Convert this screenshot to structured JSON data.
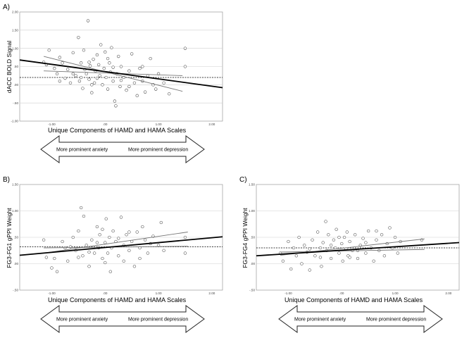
{
  "chart_data": [
    {
      "panel": "A)",
      "type": "scatter",
      "ylabel": "dACC BOLD Signal",
      "xlabel": "Unique Components of HAMD and HAMA Scales",
      "xlim": [
        -1.6,
        2.2
      ],
      "ylim": [
        -1.0,
        2.0
      ],
      "x_ticks": [
        -1.0,
        0.0,
        1.0,
        2.0
      ],
      "x_tick_labels": [
        "-1.00",
        ".00",
        "1.00",
        "2.00"
      ],
      "y_ticks": [
        -1.0,
        -0.5,
        0.0,
        0.5,
        1.0,
        1.5,
        2.0
      ],
      "y_tick_labels": [
        "-1.00",
        "-.50",
        ".00",
        ".50",
        "1.00",
        "1.50",
        "2.00"
      ],
      "arrow_left": "More prominent anxiety",
      "arrow_right": "More prominent depression",
      "fit_line": [
        [
          -1.6,
          0.68
        ],
        [
          2.2,
          -0.08
        ]
      ],
      "group_lines": [
        [
          [
            -1.15,
            0.78
          ],
          [
            1.45,
            -0.18
          ]
        ],
        [
          [
            -1.15,
            0.38
          ],
          [
            1.45,
            0.25
          ]
        ]
      ],
      "reference_y": 0.2,
      "points": [
        [
          -1.15,
          0.62
        ],
        [
          -1.1,
          0.55
        ],
        [
          -1.05,
          0.95
        ],
        [
          -0.95,
          0.45
        ],
        [
          -0.9,
          0.3
        ],
        [
          -0.85,
          0.1
        ],
        [
          -0.8,
          0.6
        ],
        [
          -0.75,
          0.18
        ],
        [
          -0.7,
          0.42
        ],
        [
          -0.65,
          0.05
        ],
        [
          -0.6,
          0.88
        ],
        [
          -0.55,
          0.25
        ],
        [
          -0.5,
          1.3
        ],
        [
          -0.48,
          0.1
        ],
        [
          -0.45,
          0.6
        ],
        [
          -0.42,
          -0.1
        ],
        [
          -0.4,
          0.95
        ],
        [
          -0.38,
          0.42
        ],
        [
          -0.35,
          0.3
        ],
        [
          -0.32,
          1.76
        ],
        [
          -0.3,
          0.15
        ],
        [
          -0.28,
          0.52
        ],
        [
          -0.25,
          -0.22
        ],
        [
          -0.22,
          0.7
        ],
        [
          -0.2,
          0.05
        ],
        [
          -0.18,
          0.38
        ],
        [
          -0.15,
          0.82
        ],
        [
          -0.12,
          0.55
        ],
        [
          -0.1,
          0.25
        ],
        [
          -0.08,
          1.1
        ],
        [
          -0.05,
          0.0
        ],
        [
          -0.02,
          0.45
        ],
        [
          0.0,
          0.9
        ],
        [
          0.02,
          0.2
        ],
        [
          0.05,
          -0.12
        ],
        [
          0.08,
          0.6
        ],
        [
          0.1,
          0.35
        ],
        [
          0.12,
          1.02
        ],
        [
          0.15,
          0.1
        ],
        [
          0.18,
          -0.45
        ],
        [
          0.2,
          -0.58
        ],
        [
          0.22,
          0.3
        ],
        [
          0.25,
          0.78
        ],
        [
          0.28,
          -0.05
        ],
        [
          0.3,
          0.5
        ],
        [
          0.35,
          0.2
        ],
        [
          0.4,
          -0.15
        ],
        [
          0.45,
          0.38
        ],
        [
          0.5,
          0.85
        ],
        [
          0.55,
          0.05
        ],
        [
          0.6,
          -0.3
        ],
        [
          0.65,
          0.45
        ],
        [
          0.7,
          0.1
        ],
        [
          0.75,
          -0.2
        ],
        [
          0.8,
          0.25
        ],
        [
          0.85,
          0.72
        ],
        [
          0.9,
          0.0
        ],
        [
          0.95,
          -0.12
        ],
        [
          1.0,
          0.3
        ],
        [
          1.1,
          0.05
        ],
        [
          1.2,
          -0.25
        ],
        [
          1.5,
          0.5
        ],
        [
          1.5,
          1.0
        ],
        [
          -0.6,
          0.3
        ],
        [
          -0.3,
          0.62
        ],
        [
          -0.25,
          0.0
        ],
        [
          0.05,
          0.72
        ],
        [
          0.3,
          0.12
        ],
        [
          -0.45,
          0.2
        ],
        [
          0.7,
          0.5
        ],
        [
          -0.15,
          0.18
        ],
        [
          0.45,
          -0.05
        ],
        [
          -0.85,
          0.75
        ],
        [
          0.15,
          0.48
        ]
      ]
    },
    {
      "panel": "B)",
      "type": "scatter",
      "ylabel": "FG3-FG1 gPPI Weight",
      "xlabel": "Unique Components of HAMD and HAMA Scales",
      "xlim": [
        -1.6,
        2.2
      ],
      "ylim": [
        -0.5,
        1.5
      ],
      "x_ticks": [
        -1.0,
        0.0,
        1.0,
        2.0
      ],
      "x_tick_labels": [
        "-1.00",
        ".00",
        "1.00",
        "2.00"
      ],
      "y_ticks": [
        -0.5,
        0.0,
        0.5,
        1.0,
        1.5
      ],
      "y_tick_labels": [
        "-.50",
        ".00",
        ".50",
        "1.00",
        "1.50"
      ],
      "arrow_left": "More prominent anxiety",
      "arrow_right": "More prominent depression",
      "fit_line": [
        [
          -1.6,
          0.16
        ],
        [
          2.2,
          0.51
        ]
      ],
      "group_lines": [
        [
          [
            -1.15,
            0.2
          ],
          [
            1.55,
            0.6
          ]
        ],
        [
          [
            -1.15,
            0.3
          ],
          [
            1.55,
            0.33
          ]
        ]
      ],
      "reference_y": 0.32,
      "points": [
        [
          -1.15,
          0.45
        ],
        [
          -1.1,
          0.12
        ],
        [
          -1.0,
          -0.08
        ],
        [
          -0.95,
          0.1
        ],
        [
          -0.9,
          -0.15
        ],
        [
          -0.8,
          0.42
        ],
        [
          -0.75,
          0.3
        ],
        [
          -0.7,
          0.05
        ],
        [
          -0.6,
          0.5
        ],
        [
          -0.55,
          0.25
        ],
        [
          -0.5,
          0.62
        ],
        [
          -0.45,
          1.06
        ],
        [
          -0.42,
          0.15
        ],
        [
          -0.4,
          0.9
        ],
        [
          -0.35,
          0.35
        ],
        [
          -0.3,
          -0.05
        ],
        [
          -0.25,
          0.45
        ],
        [
          -0.2,
          0.2
        ],
        [
          -0.15,
          0.7
        ],
        [
          -0.12,
          0.3
        ],
        [
          -0.1,
          0.55
        ],
        [
          -0.05,
          0.1
        ],
        [
          0.0,
          0.4
        ],
        [
          0.02,
          0.85
        ],
        [
          0.05,
          0.2
        ],
        [
          0.08,
          0.5
        ],
        [
          0.1,
          -0.15
        ],
        [
          0.12,
          0.3
        ],
        [
          0.15,
          0.62
        ],
        [
          0.2,
          0.42
        ],
        [
          0.25,
          0.15
        ],
        [
          0.3,
          0.88
        ],
        [
          0.35,
          0.35
        ],
        [
          0.4,
          0.55
        ],
        [
          0.45,
          0.25
        ],
        [
          0.5,
          0.42
        ],
        [
          0.55,
          -0.05
        ],
        [
          0.6,
          0.6
        ],
        [
          0.65,
          0.3
        ],
        [
          0.7,
          0.7
        ],
        [
          0.75,
          0.45
        ],
        [
          0.8,
          0.2
        ],
        [
          0.85,
          0.38
        ],
        [
          0.9,
          0.52
        ],
        [
          1.0,
          0.35
        ],
        [
          1.05,
          0.78
        ],
        [
          1.1,
          0.25
        ],
        [
          1.5,
          0.2
        ],
        [
          1.5,
          0.5
        ],
        [
          -0.65,
          0.32
        ],
        [
          -0.3,
          0.22
        ],
        [
          0.0,
          0.02
        ],
        [
          0.25,
          0.48
        ],
        [
          -0.15,
          0.4
        ],
        [
          0.45,
          0.6
        ],
        [
          -0.5,
          0.12
        ],
        [
          0.65,
          0.1
        ],
        [
          -0.05,
          0.65
        ],
        [
          0.35,
          0.05
        ]
      ]
    },
    {
      "panel": "C)",
      "type": "scatter",
      "ylabel": "FG3-FG4 gPPI Weight",
      "xlabel": "Unique Components of HAMD and HAMA Scales",
      "xlim": [
        -1.6,
        2.2
      ],
      "ylim": [
        -0.5,
        1.5
      ],
      "x_ticks": [
        -1.0,
        0.0,
        1.0,
        2.0
      ],
      "x_tick_labels": [
        "-1.00",
        ".00",
        "1.00",
        "2.00"
      ],
      "y_ticks": [
        -0.5,
        0.0,
        0.5,
        1.0,
        1.5
      ],
      "y_tick_labels": [
        "-.50",
        ".00",
        ".50",
        "1.00",
        "1.50"
      ],
      "arrow_left": "More prominent anxiety",
      "arrow_right": "More prominent depression",
      "fit_line": [
        [
          -1.6,
          0.15
        ],
        [
          2.2,
          0.4
        ]
      ],
      "group_lines": [
        [
          [
            -1.15,
            0.16
          ],
          [
            1.55,
            0.47
          ]
        ],
        [
          [
            -1.15,
            0.22
          ],
          [
            1.55,
            0.27
          ]
        ]
      ],
      "reference_y": 0.3,
      "points": [
        [
          -1.15,
          0.2
        ],
        [
          -1.1,
          0.05
        ],
        [
          -1.0,
          0.42
        ],
        [
          -0.95,
          -0.1
        ],
        [
          -0.9,
          0.3
        ],
        [
          -0.85,
          0.15
        ],
        [
          -0.8,
          0.5
        ],
        [
          -0.75,
          0.0
        ],
        [
          -0.7,
          0.35
        ],
        [
          -0.65,
          0.22
        ],
        [
          -0.6,
          -0.12
        ],
        [
          -0.55,
          0.45
        ],
        [
          -0.5,
          0.15
        ],
        [
          -0.45,
          0.6
        ],
        [
          -0.4,
          0.3
        ],
        [
          -0.38,
          -0.05
        ],
        [
          -0.35,
          0.4
        ],
        [
          -0.3,
          0.8
        ],
        [
          -0.28,
          0.25
        ],
        [
          -0.25,
          0.55
        ],
        [
          -0.2,
          0.1
        ],
        [
          -0.15,
          0.45
        ],
        [
          -0.12,
          0.3
        ],
        [
          -0.1,
          0.65
        ],
        [
          -0.05,
          0.2
        ],
        [
          0.0,
          0.38
        ],
        [
          0.02,
          0.05
        ],
        [
          0.05,
          0.5
        ],
        [
          0.08,
          0.28
        ],
        [
          0.1,
          0.6
        ],
        [
          0.12,
          0.15
        ],
        [
          0.15,
          0.42
        ],
        [
          0.2,
          0.25
        ],
        [
          0.25,
          0.55
        ],
        [
          0.3,
          0.1
        ],
        [
          0.35,
          0.35
        ],
        [
          0.4,
          0.48
        ],
        [
          0.45,
          0.2
        ],
        [
          0.5,
          0.62
        ],
        [
          0.55,
          0.3
        ],
        [
          0.6,
          0.05
        ],
        [
          0.65,
          0.45
        ],
        [
          0.7,
          0.25
        ],
        [
          0.75,
          0.55
        ],
        [
          0.8,
          0.15
        ],
        [
          0.85,
          0.38
        ],
        [
          0.9,
          0.68
        ],
        [
          0.95,
          0.3
        ],
        [
          1.0,
          0.5
        ],
        [
          1.05,
          0.2
        ],
        [
          1.1,
          0.42
        ],
        [
          1.5,
          0.45
        ],
        [
          -0.6,
          0.28
        ],
        [
          -0.2,
          0.35
        ],
        [
          0.15,
          0.12
        ],
        [
          0.45,
          0.4
        ],
        [
          -0.05,
          0.5
        ],
        [
          0.3,
          0.25
        ],
        [
          -0.4,
          0.12
        ],
        [
          0.65,
          0.62
        ]
      ]
    }
  ]
}
